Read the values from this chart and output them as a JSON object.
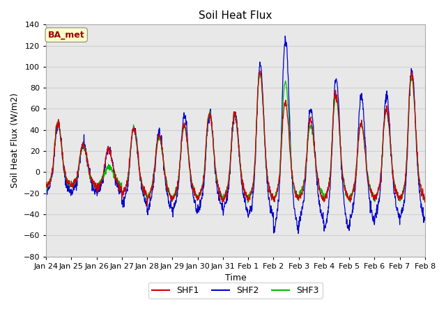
{
  "title": "Soil Heat Flux",
  "ylabel": "Soil Heat Flux (W/m2)",
  "xlabel": "Time",
  "ylim": [
    -80,
    140
  ],
  "yticks": [
    -80,
    -60,
    -40,
    -20,
    0,
    20,
    40,
    60,
    80,
    100,
    120,
    140
  ],
  "xtick_labels": [
    "Jan 24",
    "Jan 25",
    "Jan 26",
    "Jan 27",
    "Jan 28",
    "Jan 29",
    "Jan 30",
    "Jan 31",
    "Feb 1",
    "Feb 2",
    "Feb 3",
    "Feb 4",
    "Feb 5",
    "Feb 6",
    "Feb 7",
    "Feb 8"
  ],
  "colors": {
    "SHF1": "#cc0000",
    "SHF2": "#0000cc",
    "SHF3": "#00bb00"
  },
  "annotation_text": "BA_met",
  "annotation_bg": "#ffffcc",
  "annotation_fg": "#990000",
  "grid_color": "#d0d0d0",
  "background_color": "#e8e8e8",
  "n_days": 15,
  "pts_per_day": 96,
  "peak_amps_shf1": [
    42,
    25,
    20,
    38,
    32,
    40,
    50,
    50,
    87,
    60,
    45,
    68,
    42,
    55,
    85,
    80
  ],
  "peak_amps_shf2": [
    42,
    25,
    20,
    40,
    35,
    50,
    52,
    52,
    95,
    118,
    55,
    82,
    67,
    68,
    90,
    130
  ],
  "peak_amps_shf3": [
    42,
    22,
    5,
    38,
    30,
    40,
    50,
    50,
    85,
    78,
    40,
    65,
    42,
    53,
    82,
    80
  ],
  "trough_shf1": [
    -15,
    -15,
    -18,
    -25,
    -30,
    -30,
    -30,
    -30,
    -30,
    -30,
    -30,
    -30,
    -30,
    -30,
    -30,
    -30
  ],
  "trough_shf2": [
    -22,
    -22,
    -22,
    -35,
    -42,
    -42,
    -42,
    -42,
    -50,
    -65,
    -55,
    -65,
    -55,
    -50,
    -52,
    -55
  ],
  "trough_shf3": [
    -15,
    -15,
    -15,
    -25,
    -28,
    -28,
    -28,
    -28,
    -28,
    -30,
    -25,
    -30,
    -28,
    -28,
    -30,
    -28
  ],
  "line_width": 0.9,
  "title_fontsize": 11,
  "tick_fontsize": 8,
  "ylabel_fontsize": 9,
  "xlabel_fontsize": 9
}
